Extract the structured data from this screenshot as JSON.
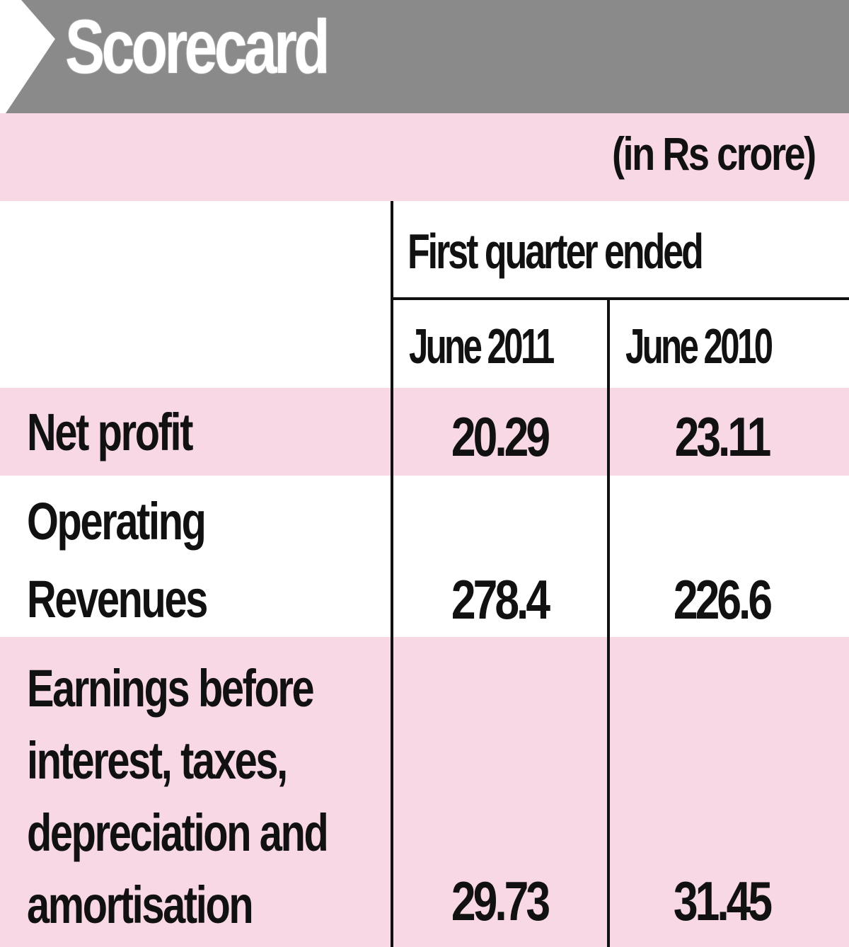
{
  "title": "Scorecard",
  "unit": "(in Rs crore)",
  "chart_data": {
    "type": "table",
    "title": "Scorecard",
    "unit": "(in Rs crore)",
    "group_header": "First quarter ended",
    "columns": [
      "June 2011",
      "June 2010"
    ],
    "rows": [
      {
        "label_lines": [
          "Net profit"
        ],
        "values": [
          "20.29",
          "23.11"
        ]
      },
      {
        "label_lines": [
          "Operating",
          "Revenues"
        ],
        "values": [
          "278.4",
          "226.6"
        ]
      },
      {
        "label_lines": [
          "Earnings before",
          "interest, taxes,",
          "depreciation and",
          "amortisation"
        ],
        "values": [
          "29.73",
          "31.45"
        ]
      }
    ]
  },
  "colors": {
    "title_bar": "#8a8a8a",
    "row_pink": "#f9d8e6",
    "text": "#111111"
  }
}
